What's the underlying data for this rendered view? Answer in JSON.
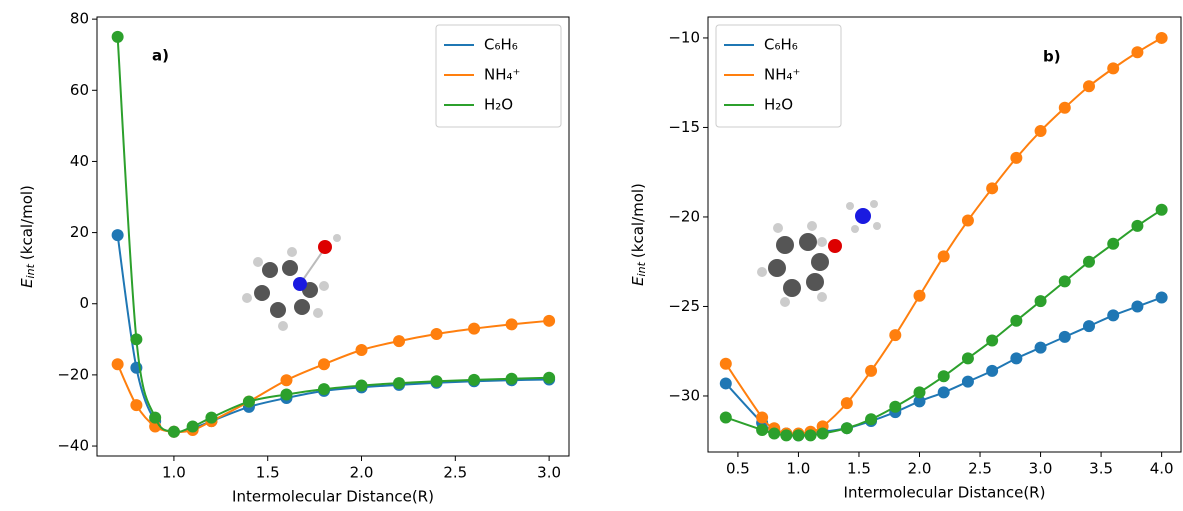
{
  "chart_data": [
    {
      "type": "line",
      "panel_label": "a)",
      "xlabel": "Intermolecular Distance(R)",
      "ylabel": {
        "symbol": "E",
        "subscript": "int",
        "unit": "(kcal/mol)"
      },
      "x": [
        0.7,
        0.8,
        0.9,
        1.0,
        1.1,
        1.2,
        1.4,
        1.6,
        1.8,
        2.0,
        2.2,
        2.4,
        2.6,
        2.8,
        3.0
      ],
      "series": [
        {
          "name": "C₆H₆",
          "color": "#1f77b4",
          "values": [
            19.3,
            -18,
            -33,
            -36,
            -35,
            -33,
            -29,
            -26.5,
            -24.5,
            -23.5,
            -22.8,
            -22.2,
            -21.8,
            -21.5,
            -21.3
          ]
        },
        {
          "name": "NH₄⁺",
          "color": "#ff7f0e",
          "values": [
            -17,
            -28.5,
            -34.5,
            -36,
            -35.5,
            -33,
            -27.5,
            -21.5,
            -17,
            -13,
            -10.5,
            -8.5,
            -7,
            -5.8,
            -4.8
          ]
        },
        {
          "name": "H₂O",
          "color": "#2ca02c",
          "values": [
            75,
            -10,
            -32,
            -36,
            -34.5,
            -32,
            -27.5,
            -25.5,
            -24,
            -23,
            -22.3,
            -21.8,
            -21.4,
            -21.1,
            -20.8
          ]
        }
      ],
      "xlim": [
        0.59,
        3.106
      ],
      "ylim": [
        -42.8,
        80.6
      ],
      "xticks": [
        {
          "value": 1,
          "label": "1.0"
        },
        {
          "value": 1.5,
          "label": "1.5"
        },
        {
          "value": 2,
          "label": "2.0"
        },
        {
          "value": 2.5,
          "label": "2.5"
        },
        {
          "value": 3,
          "label": "3.0"
        }
      ],
      "yticks": [
        {
          "value": -40,
          "label": "−40"
        },
        {
          "value": -20,
          "label": "−20"
        },
        0,
        20,
        40,
        60,
        80
      ],
      "legend": "upper right"
    },
    {
      "type": "line",
      "panel_label": "b)",
      "xlabel": "Intermolecular Distance(R)",
      "ylabel": {
        "symbol": "E",
        "subscript": "int",
        "unit": "(kcal/mol)"
      },
      "x": [
        0.4,
        0.7,
        0.8,
        0.9,
        1.0,
        1.1,
        1.2,
        1.4,
        1.6,
        1.8,
        2.0,
        2.2,
        2.4,
        2.6,
        2.8,
        3.0,
        3.2,
        3.4,
        3.6,
        3.8,
        4.0
      ],
      "series": [
        {
          "name": "C₆H₆",
          "color": "#1f77b4",
          "values": [
            -29.3,
            -31.5,
            -31.9,
            -32.1,
            -32.2,
            -32.1,
            -32.0,
            -31.8,
            -31.4,
            -30.9,
            -30.3,
            -29.8,
            -29.2,
            -28.6,
            -27.9,
            -27.3,
            -26.7,
            -26.1,
            -25.5,
            -25.0,
            -24.5
          ]
        },
        {
          "name": "NH₄⁺",
          "color": "#ff7f0e",
          "values": [
            -28.2,
            -31.2,
            -31.8,
            -32.1,
            -32.1,
            -32.0,
            -31.7,
            -30.4,
            -28.6,
            -26.6,
            -24.4,
            -22.2,
            -20.2,
            -18.4,
            -16.7,
            -15.2,
            -13.9,
            -12.7,
            -11.7,
            -10.8,
            -10.0
          ]
        },
        {
          "name": "H₂O",
          "color": "#2ca02c",
          "values": [
            -31.2,
            -31.9,
            -32.1,
            -32.2,
            -32.2,
            -32.2,
            -32.1,
            -31.8,
            -31.3,
            -30.6,
            -29.8,
            -28.9,
            -27.9,
            -26.9,
            -25.8,
            -24.7,
            -23.6,
            -22.5,
            -21.5,
            -20.5,
            -19.6
          ]
        }
      ],
      "xlim": [
        0.253,
        4.16
      ],
      "ylim": [
        -33.13,
        -8.83
      ],
      "xticks": [
        {
          "value": 0.5,
          "label": "0.5"
        },
        {
          "value": 1,
          "label": "1.0"
        },
        {
          "value": 1.5,
          "label": "1.5"
        },
        {
          "value": 2,
          "label": "2.0"
        },
        {
          "value": 2.5,
          "label": "2.5"
        },
        {
          "value": 3,
          "label": "3.0"
        },
        {
          "value": 3.5,
          "label": "3.5"
        },
        {
          "value": 4,
          "label": "4.0"
        }
      ],
      "yticks": [
        {
          "value": -30,
          "label": "−30"
        },
        {
          "value": -25,
          "label": "−25"
        },
        {
          "value": -20,
          "label": "−20"
        },
        {
          "value": -15,
          "label": "−15"
        },
        {
          "value": -10,
          "label": "−10"
        }
      ],
      "legend": "upper left"
    }
  ]
}
